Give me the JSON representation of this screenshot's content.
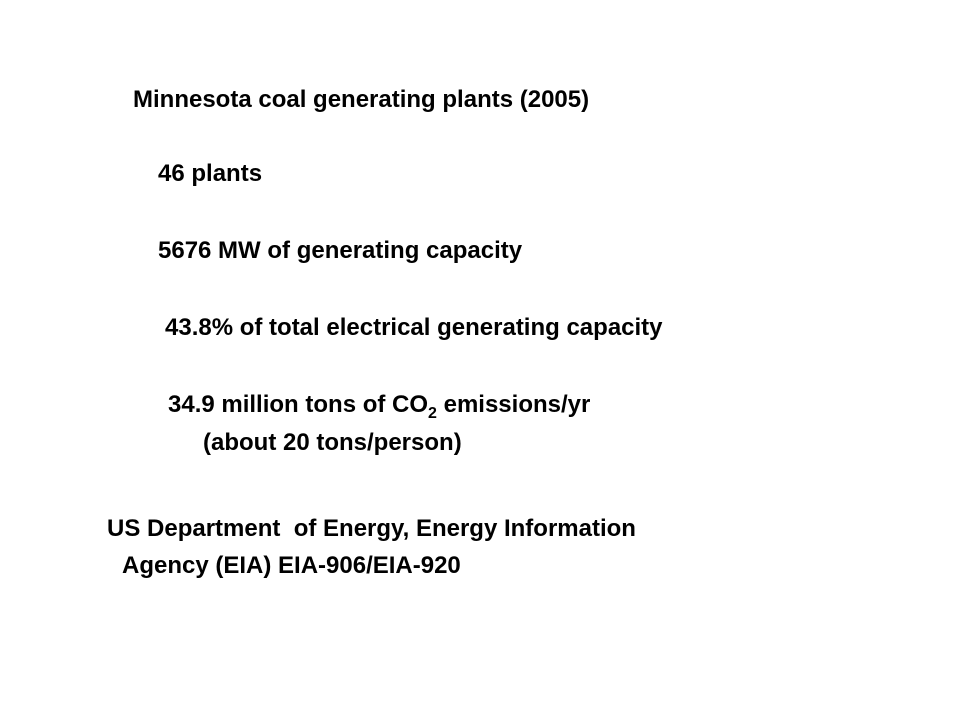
{
  "title": "Minnesota coal generating plants (2005)",
  "items": [
    "46 plants",
    "5676 MW of generating capacity",
    "43.8% of total electrical generating capacity"
  ],
  "emissions": {
    "before": "34.9 million tons of CO",
    "subscript": "2",
    "after": " emissions/yr",
    "note": "(about 20 tons/person)"
  },
  "source": {
    "line1": "US Department  of Energy, Energy Information",
    "line2": "Agency (EIA) EIA-906/EIA-920"
  }
}
